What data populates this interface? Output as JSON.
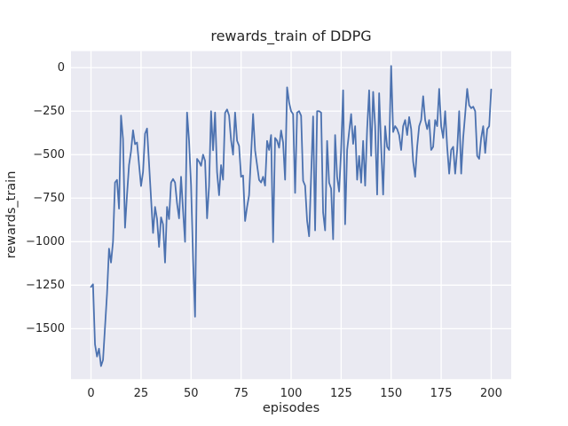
{
  "figure": {
    "background": "#ffffff"
  },
  "chart_data": {
    "type": "line",
    "title": "rewards_train of DDPG",
    "xlabel": "episodes",
    "ylabel": "rewards_train",
    "x_description": "episodes 0-200, one data point per episode (array index = episode number)",
    "x_ticks": [
      0,
      25,
      50,
      75,
      100,
      125,
      150,
      175,
      200
    ],
    "x_tick_labels": [
      "0",
      "25",
      "50",
      "75",
      "100",
      "125",
      "150",
      "175",
      "200"
    ],
    "y_ticks": [
      0,
      -250,
      -500,
      -750,
      -1000,
      -1250,
      -1500
    ],
    "y_tick_labels": [
      "0",
      "−250",
      "−500",
      "−750",
      "−1000",
      "−1250",
      "−1500"
    ],
    "xlim": [
      -10,
      210
    ],
    "ylim": [
      -1790,
      95
    ],
    "grid": true,
    "legend": "none",
    "style": {
      "plot_background": "#eaeaf2",
      "grid_color": "#ffffff",
      "line_color": "#4c72b0",
      "text_color": "#262626",
      "line_width": 1.8
    },
    "series": [
      {
        "name": "rewards_train",
        "values": [
          -1260,
          -1245,
          -1590,
          -1660,
          -1615,
          -1715,
          -1680,
          -1490,
          -1300,
          -1040,
          -1120,
          -1000,
          -660,
          -645,
          -810,
          -275,
          -410,
          -920,
          -730,
          -560,
          -480,
          -360,
          -440,
          -430,
          -555,
          -680,
          -600,
          -380,
          -350,
          -550,
          -750,
          -950,
          -800,
          -870,
          -1030,
          -860,
          -900,
          -1120,
          -800,
          -870,
          -660,
          -640,
          -660,
          -780,
          -866,
          -627,
          -820,
          -1001,
          -258,
          -420,
          -676,
          -1100,
          -1431,
          -524,
          -540,
          -564,
          -500,
          -535,
          -866,
          -680,
          -250,
          -475,
          -258,
          -600,
          -733,
          -560,
          -644,
          -260,
          -240,
          -275,
          -417,
          -500,
          -258,
          -420,
          -450,
          -627,
          -620,
          -881,
          -800,
          -733,
          -500,
          -266,
          -475,
          -560,
          -645,
          -660,
          -627,
          -678,
          -421,
          -473,
          -387,
          -1003,
          -404,
          -420,
          -460,
          -361,
          -430,
          -644,
          -113,
          -200,
          -250,
          -267,
          -720,
          -258,
          -250,
          -276,
          -650,
          -678,
          -880,
          -969,
          -627,
          -280,
          -935,
          -250,
          -250,
          -258,
          -832,
          -935,
          -421,
          -661,
          -695,
          -986,
          -387,
          -627,
          -712,
          -473,
          -130,
          -900,
          -473,
          -370,
          -267,
          -438,
          -336,
          -644,
          -507,
          -661,
          -421,
          -678,
          -353,
          -130,
          -507,
          -139,
          -336,
          -729,
          -147,
          -455,
          -729,
          -336,
          -455,
          -473,
          10,
          -370,
          -336,
          -353,
          -387,
          -473,
          -336,
          -301,
          -387,
          -284,
          -353,
          -541,
          -627,
          -455,
          -336,
          -301,
          -164,
          -301,
          -353,
          -301,
          -473,
          -455,
          -301,
          -336,
          -122,
          -336,
          -404,
          -250,
          -455,
          -609,
          -473,
          -455,
          -609,
          -473,
          -250,
          -609,
          -404,
          -267,
          -122,
          -216,
          -233,
          -224,
          -250,
          -507,
          -524,
          -404,
          -336,
          -490,
          -353,
          -336,
          -125
        ]
      }
    ]
  }
}
